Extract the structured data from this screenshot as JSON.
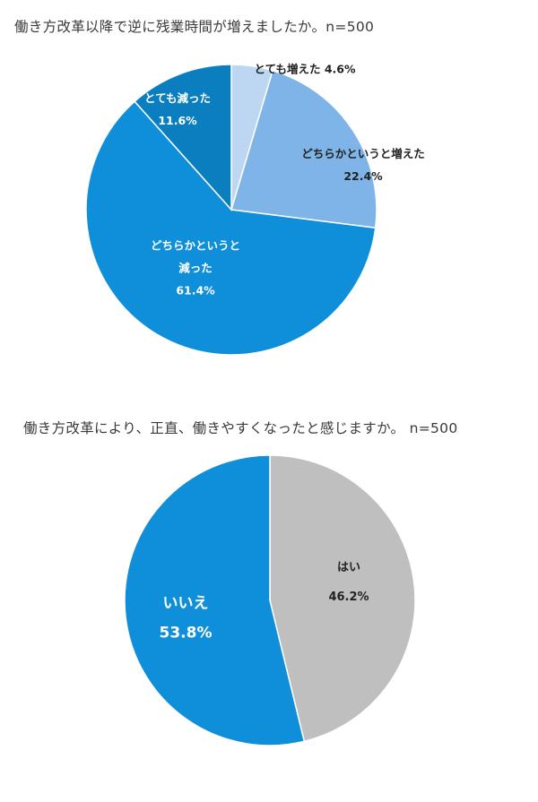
{
  "chart_data": [
    {
      "type": "pie",
      "title": "働き方改革以降で逆に残業時間が増えましたか。n=500",
      "categories": [
        "とても増えた",
        "どちらかというと増えた",
        "どちらかというと減った",
        "とても減った"
      ],
      "values": [
        4.6,
        22.4,
        61.4,
        11.6
      ],
      "labels": [
        [
          "とても増えた 4.6%"
        ],
        [
          "どちらかというと増えた",
          "22.4%"
        ],
        [
          "どちらかというと",
          "減った",
          "61.4%"
        ],
        [
          "とても減った",
          "11.6%"
        ]
      ],
      "colors": [
        "#bdd7f2",
        "#7fb4e8",
        "#0f8fd9",
        "#0b7ec0"
      ],
      "label_colors": [
        "#222222",
        "#222222",
        "#ffffff",
        "#ffffff"
      ]
    },
    {
      "type": "pie",
      "title": "働き方改革により、正直、働きやすくなったと感じますか。 n=500",
      "categories": [
        "はい",
        "いいえ"
      ],
      "values": [
        46.2,
        53.8
      ],
      "labels": [
        [
          "はい",
          "46.2%"
        ],
        [
          "いいえ",
          "53.8%"
        ]
      ],
      "colors": [
        "#bfbfbf",
        "#0f8fd9"
      ],
      "label_colors": [
        "#222222",
        "#ffffff"
      ]
    }
  ]
}
